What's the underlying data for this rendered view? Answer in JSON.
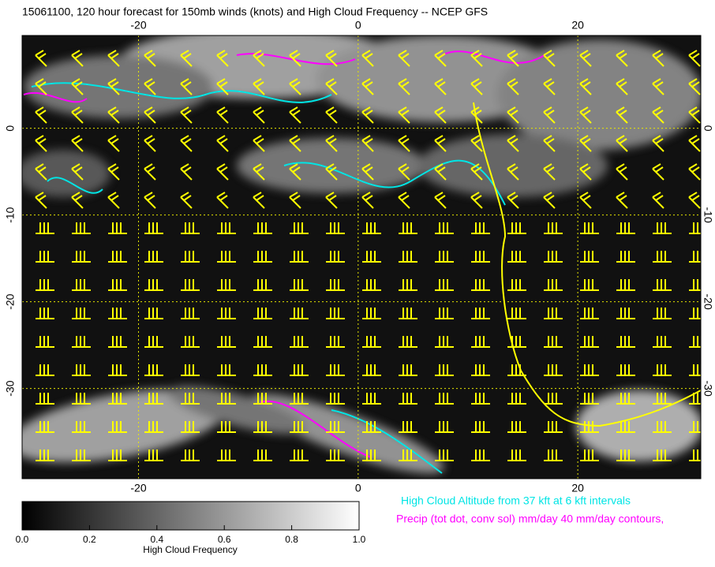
{
  "title": "15061100, 120 hour forecast for 150mb winds (knots) and High Cloud Frequency -- NCEP GFS",
  "map": {
    "xlim": [
      -30.6,
      31.2
    ],
    "ylim": [
      -40.4,
      10.7
    ],
    "xticks": [
      -20,
      0,
      20
    ],
    "yticks": [
      0,
      -10,
      -20,
      -30
    ],
    "grid_color": "#e6e600"
  },
  "colorbar": {
    "label": "High Cloud Frequency",
    "xlim": [
      0,
      1
    ],
    "xticks": [
      {
        "value": 0,
        "label": "0.0"
      },
      {
        "value": 0.2,
        "label": "0.2"
      },
      {
        "value": 0.4,
        "label": "0.4"
      },
      {
        "value": 0.6,
        "label": "0.6"
      },
      {
        "value": 0.8,
        "label": "0.8"
      },
      {
        "value": 1,
        "label": "1.0"
      }
    ]
  },
  "legend": [
    "High Cloud Altitude from 37 kft at 6 kft intervals",
    "Precip (tot dot, conv sol) mm/day 40 mm/day contours,"
  ]
}
